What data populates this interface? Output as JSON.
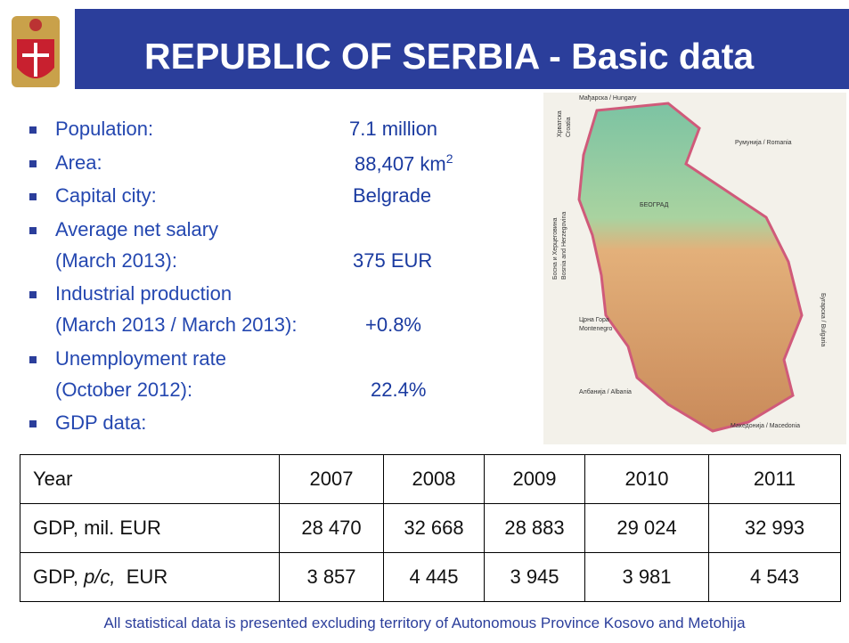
{
  "header": {
    "title": "REPUBLIC OF SERBIA - Basic data"
  },
  "facts": [
    {
      "label": "Population:",
      "value": "7.1 million"
    },
    {
      "label": "Area:",
      "value": "88,407 km",
      "sup": "2"
    },
    {
      "label": "Capital city:",
      "value": "Belgrade"
    },
    {
      "label": "Average net salary",
      "label2": "(March 2013):",
      "value": "375 EUR"
    },
    {
      "label": "Industrial production",
      "label2": "(March 2013 / March 2013):",
      "value": "+0.8%"
    },
    {
      "label": "Unemployment rate",
      "label2": "(October 2012):",
      "value": "22.4%"
    },
    {
      "label": "GDP data:"
    }
  ],
  "map": {
    "labels": [
      "Мађарска / Hungary",
      "Румунија / Romania",
      "Хрватска",
      "Croatia",
      "Босна и Херцеговина",
      "Bosnia and Herzegovina",
      "БЕОГРАД",
      "Црна Гора",
      "Montenegro",
      "Албанија / Albania",
      "Македонија / Macedonia",
      "Бугарска / Bulgaria"
    ]
  },
  "table": {
    "rows": [
      [
        "Year",
        "2007",
        "2008",
        "2009",
        "2010",
        "2011"
      ],
      [
        "GDP, mil. EUR",
        "28 470",
        "32 668",
        "28 883",
        "29 024",
        "32 993"
      ],
      [
        {
          "prefix": "GDP, ",
          "italic": "p/c,",
          "suffix": "  EUR"
        },
        "3 857",
        "4 445",
        "3 945",
        "3 981",
        "4 543"
      ]
    ]
  },
  "footer": {
    "note": "All statistical data is presented excluding territory of Autonomous Province Kosovo and Metohija"
  }
}
